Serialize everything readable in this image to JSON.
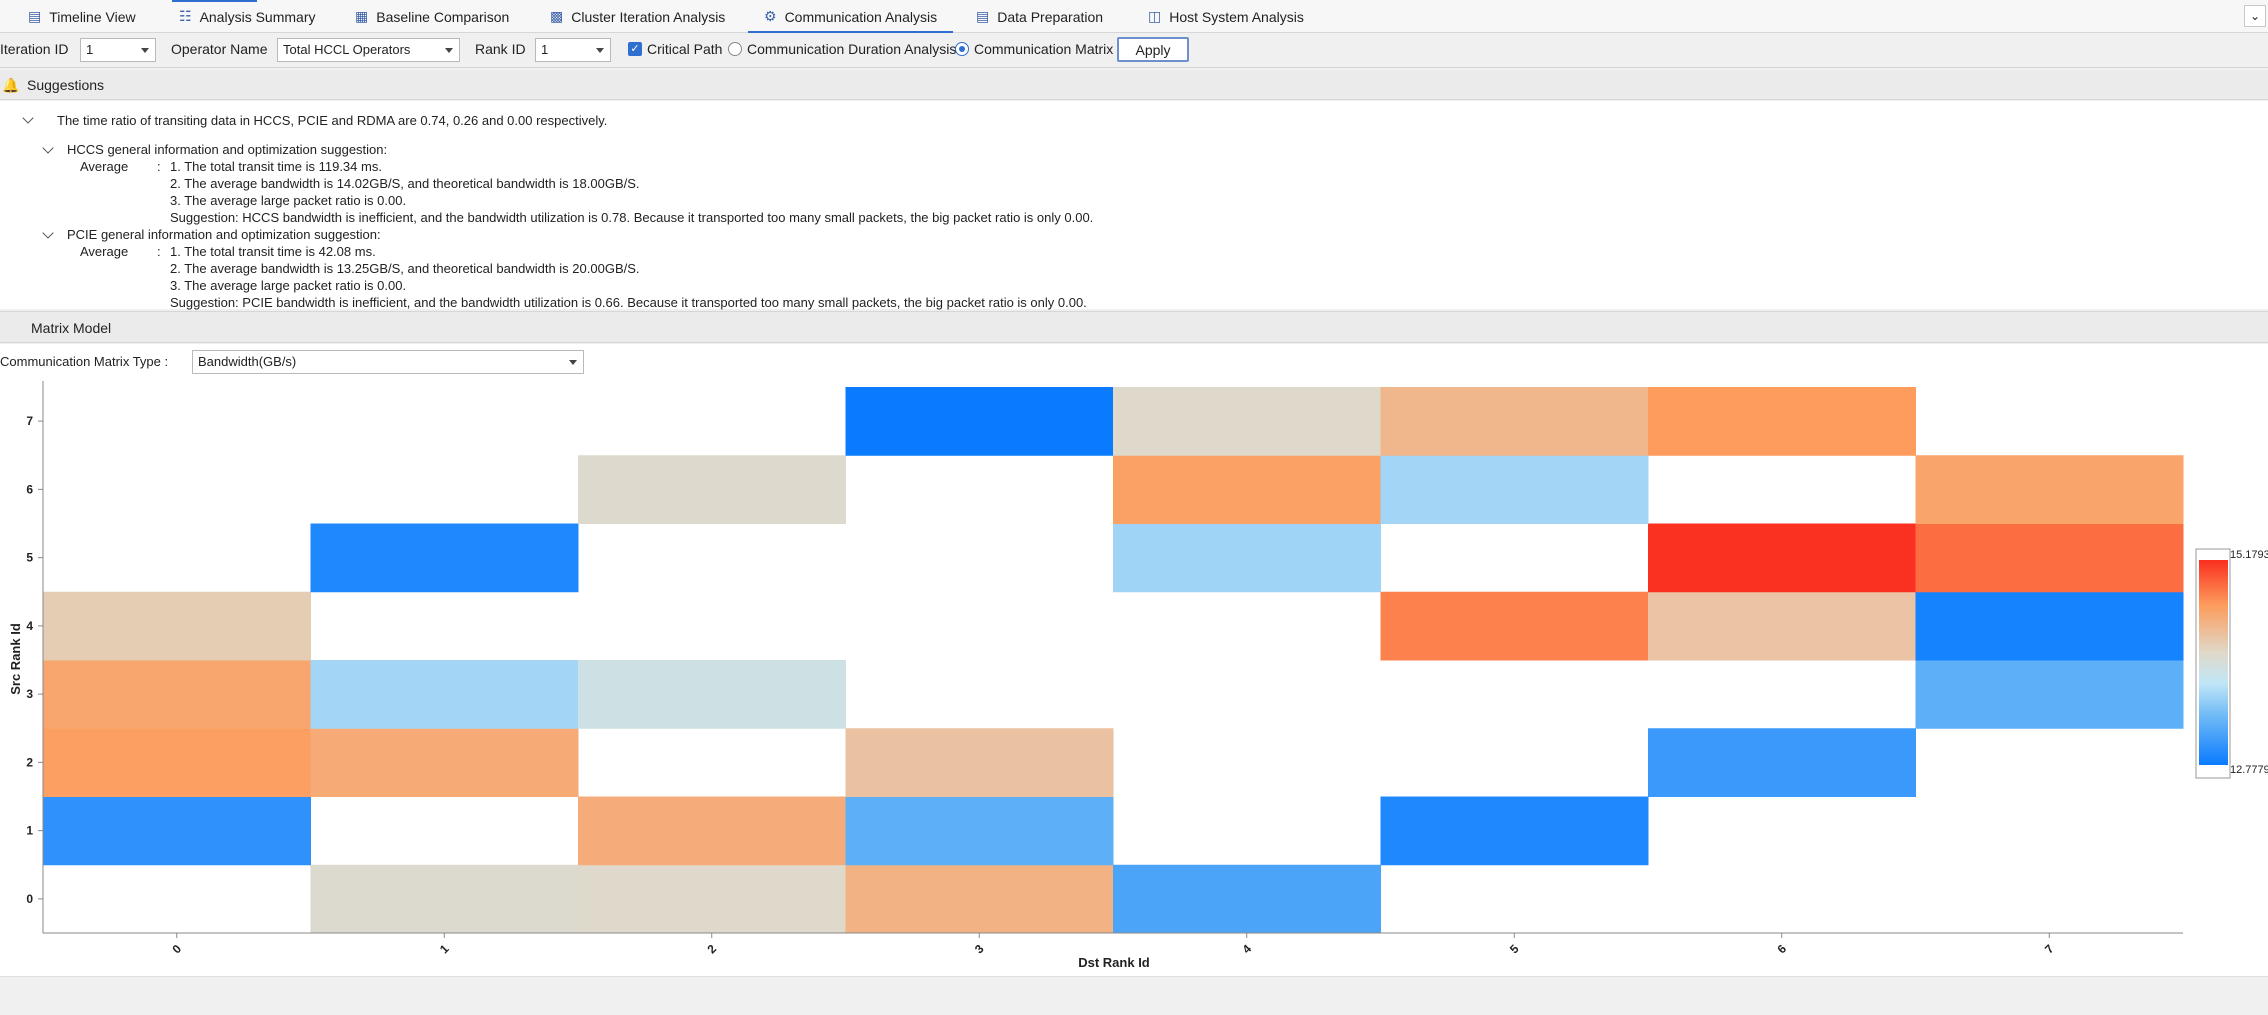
{
  "tabs": [
    {
      "label": "Timeline View",
      "icon": "bar-chart-icon",
      "active": false
    },
    {
      "label": "Analysis Summary",
      "icon": "summary-icon",
      "active": false
    },
    {
      "label": "Baseline Comparison",
      "icon": "compare-icon",
      "active": false
    },
    {
      "label": "Cluster Iteration Analysis",
      "icon": "cluster-icon",
      "active": false
    },
    {
      "label": "Communication Analysis",
      "icon": "communication-icon",
      "active": true
    },
    {
      "label": "Data Preparation",
      "icon": "data-icon",
      "active": false
    },
    {
      "label": "Host System Analysis",
      "icon": "host-icon",
      "active": false
    }
  ],
  "filters": {
    "iteration_label": "Iteration ID",
    "iteration_value": "1",
    "operator_label": "Operator Name",
    "operator_value": "Total HCCL Operators",
    "rank_label": "Rank ID",
    "rank_value": "1",
    "critical_path_label": "Critical Path",
    "critical_path_checked": true,
    "radio_duration_label": "Communication Duration Analysis",
    "radio_matrix_label": "Communication Matrix",
    "selected_view": "Communication Matrix",
    "apply_label": "Apply"
  },
  "suggestions": {
    "title": "Suggestions",
    "summary": "The time ratio of transiting data in HCCS, PCIE and RDMA are 0.74, 0.26 and 0.00 respectively.",
    "groups": [
      {
        "title": "HCCS general information and optimization suggestion:",
        "key": "Average",
        "sep": ":",
        "lines": [
          "1. The total transit time is 119.34 ms.",
          "2. The average bandwidth is 14.02GB/S, and theoretical bandwidth is 18.00GB/S.",
          "3. The average large packet ratio is 0.00.",
          "Suggestion: HCCS bandwidth is inefficient, and the bandwidth utilization is 0.78. Because it transported too many small packets, the big packet ratio is only 0.00."
        ]
      },
      {
        "title": "PCIE general information and optimization suggestion:",
        "key": "Average",
        "sep": ":",
        "lines": [
          "1. The total transit time is 42.08 ms.",
          "2. The average bandwidth is 13.25GB/S, and theoretical bandwidth is 20.00GB/S.",
          "3. The average large packet ratio is 0.00.",
          "Suggestion: PCIE bandwidth is inefficient, and the bandwidth utilization is 0.66. Because it transported too many small packets, the big packet ratio is only 0.00."
        ]
      }
    ]
  },
  "matrix": {
    "title": "Matrix Model",
    "type_label": "Communication Matrix Type :",
    "type_value": "Bandwidth(GB/s)"
  },
  "chart_data": {
    "type": "heatmap",
    "xlabel": "Dst Rank Id",
    "ylabel": "Src Rank Id",
    "x_categories": [
      "0",
      "1",
      "2",
      "3",
      "4",
      "5",
      "6",
      "7"
    ],
    "y_categories": [
      "0",
      "1",
      "2",
      "3",
      "4",
      "5",
      "6",
      "7"
    ],
    "colorbar": {
      "min": 12.7779,
      "max": 15.1793,
      "min_label": "12.7779",
      "max_label": "15.1793"
    },
    "cells": [
      {
        "src": 0,
        "dst": 1,
        "value": 14.05
      },
      {
        "src": 0,
        "dst": 2,
        "value": 14.08
      },
      {
        "src": 0,
        "dst": 3,
        "value": 14.45
      },
      {
        "src": 0,
        "dst": 4,
        "value": 13.15
      },
      {
        "src": 1,
        "dst": 0,
        "value": 12.98
      },
      {
        "src": 1,
        "dst": 2,
        "value": 14.5
      },
      {
        "src": 1,
        "dst": 3,
        "value": 13.25
      },
      {
        "src": 1,
        "dst": 5,
        "value": 12.9
      },
      {
        "src": 2,
        "dst": 0,
        "value": 14.62
      },
      {
        "src": 2,
        "dst": 1,
        "value": 14.52
      },
      {
        "src": 2,
        "dst": 3,
        "value": 14.3
      },
      {
        "src": 2,
        "dst": 6,
        "value": 13.05
      },
      {
        "src": 3,
        "dst": 0,
        "value": 14.56
      },
      {
        "src": 3,
        "dst": 1,
        "value": 13.6
      },
      {
        "src": 3,
        "dst": 2,
        "value": 13.88
      },
      {
        "src": 3,
        "dst": 7,
        "value": 13.25
      },
      {
        "src": 4,
        "dst": 0,
        "value": 14.2
      },
      {
        "src": 4,
        "dst": 5,
        "value": 14.78
      },
      {
        "src": 4,
        "dst": 6,
        "value": 14.28
      },
      {
        "src": 4,
        "dst": 7,
        "value": 12.84
      },
      {
        "src": 5,
        "dst": 1,
        "value": 12.9
      },
      {
        "src": 5,
        "dst": 4,
        "value": 13.58
      },
      {
        "src": 5,
        "dst": 6,
        "value": 15.17
      },
      {
        "src": 5,
        "dst": 7,
        "value": 14.88
      },
      {
        "src": 6,
        "dst": 2,
        "value": 14.06
      },
      {
        "src": 6,
        "dst": 4,
        "value": 14.6
      },
      {
        "src": 6,
        "dst": 5,
        "value": 13.6
      },
      {
        "src": 6,
        "dst": 7,
        "value": 14.58
      },
      {
        "src": 7,
        "dst": 3,
        "value": 12.78
      },
      {
        "src": 7,
        "dst": 4,
        "value": 14.08
      },
      {
        "src": 7,
        "dst": 5,
        "value": 14.4
      },
      {
        "src": 7,
        "dst": 6,
        "value": 14.65
      }
    ]
  }
}
